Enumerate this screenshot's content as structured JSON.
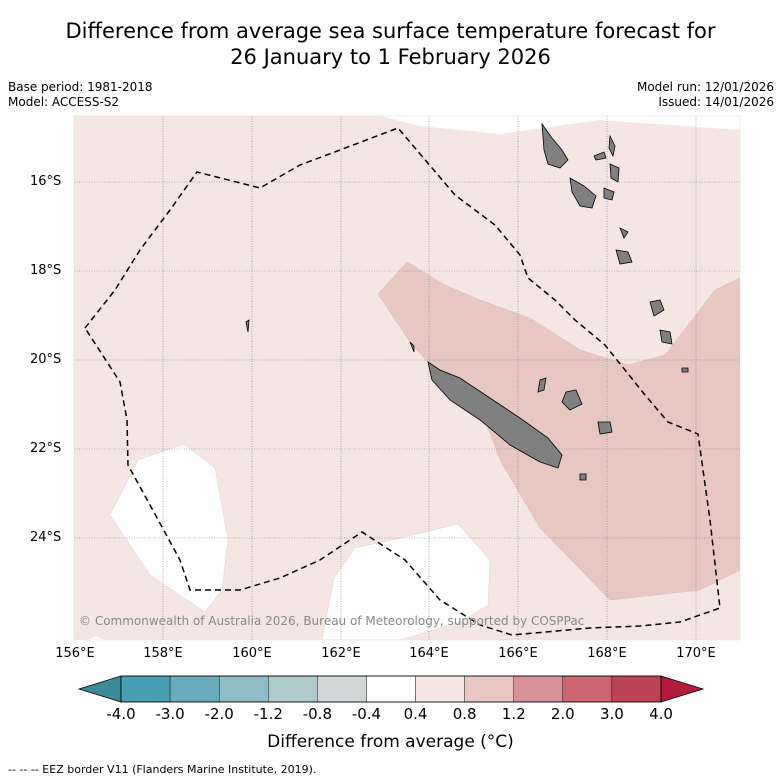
{
  "title_line1": "Difference from average sea surface temperature forecast for",
  "title_line2": "26 January to 1 February 2026",
  "base_period": "Base period: 1981-2018",
  "model": "Model: ACCESS-S2",
  "model_run": "Model run: 12/01/2026",
  "issued": "Issued: 14/01/2026",
  "copyright": "© Commonwealth of Australia 2026, Bureau of Meteorology, supported by COSPPac",
  "x_ticks": [
    "156°E",
    "158°E",
    "160°E",
    "162°E",
    "164°E",
    "166°E",
    "168°E",
    "170°E"
  ],
  "y_ticks": [
    "16°S",
    "18°S",
    "20°S",
    "22°S",
    "24°S"
  ],
  "colorbar": {
    "labels": [
      "-4.0",
      "-3.0",
      "-2.0",
      "-1.2",
      "-0.8",
      "-0.4",
      "0.4",
      "0.8",
      "1.2",
      "2.0",
      "3.0",
      "4.0"
    ],
    "colors": [
      "#3b8a9a",
      "#46a0b2",
      "#6aacbb",
      "#8fbcc7",
      "#aecacd",
      "#d3d7d7",
      "#ffffff",
      "#f5e6e4",
      "#e8c6c1",
      "#d89299",
      "#cd6670",
      "#bd4455",
      "#b31b3d"
    ],
    "title": "Difference from average (°C)"
  },
  "footer": "--  --  -- EEZ border V11 (Flanders Marine Institute, 2019)."
}
